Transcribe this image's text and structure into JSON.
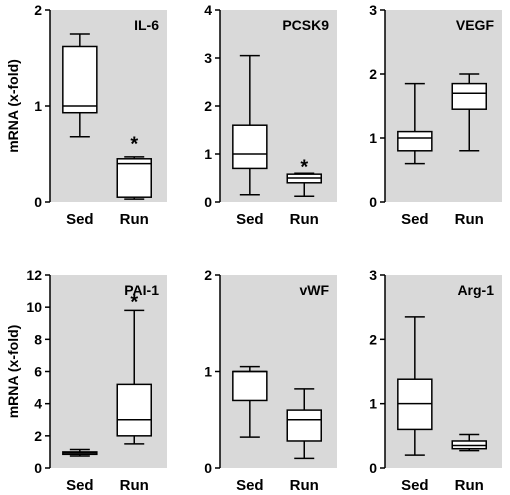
{
  "colors": {
    "panel_background": "#d9d9d9",
    "box_fill": "#ffffff",
    "line": "#000000"
  },
  "chart_data": [
    {
      "type": "box",
      "title": "IL-6",
      "ylabel": "mRNA (x-fold)",
      "ylim": [
        0,
        2
      ],
      "yticks": [
        "0",
        "1",
        "2"
      ],
      "categories": [
        "Sed",
        "Run"
      ],
      "boxes": [
        {
          "min": 0.68,
          "q1": 0.93,
          "median": 1.0,
          "q3": 1.62,
          "max": 1.75
        },
        {
          "min": 0.03,
          "q1": 0.05,
          "median": 0.4,
          "q3": 0.45,
          "max": 0.47
        }
      ],
      "annotations": [
        {
          "category": "Run",
          "text": "*",
          "value": 0.62
        }
      ]
    },
    {
      "type": "box",
      "title": "PCSK9",
      "ylabel": "",
      "ylim": [
        0,
        4
      ],
      "yticks": [
        "0",
        "1",
        "2",
        "3",
        "4"
      ],
      "categories": [
        "Sed",
        "Run"
      ],
      "boxes": [
        {
          "min": 0.15,
          "q1": 0.7,
          "median": 1.0,
          "q3": 1.6,
          "max": 3.05
        },
        {
          "min": 0.12,
          "q1": 0.4,
          "median": 0.5,
          "q3": 0.58,
          "max": 0.6
        }
      ],
      "annotations": [
        {
          "category": "Run",
          "text": "*",
          "value": 0.76
        }
      ]
    },
    {
      "type": "box",
      "title": "VEGF",
      "ylabel": "",
      "ylim": [
        0,
        3
      ],
      "yticks": [
        "0",
        "1",
        "2",
        "3"
      ],
      "categories": [
        "Sed",
        "Run"
      ],
      "boxes": [
        {
          "min": 0.6,
          "q1": 0.8,
          "median": 1.0,
          "q3": 1.1,
          "max": 1.85
        },
        {
          "min": 0.8,
          "q1": 1.45,
          "median": 1.7,
          "q3": 1.85,
          "max": 2.0
        }
      ],
      "annotations": []
    },
    {
      "type": "box",
      "title": "PAI-1",
      "ylabel": "mRNA (x-fold)",
      "ylim": [
        0,
        12
      ],
      "yticks": [
        "0",
        "2",
        "4",
        "6",
        "8",
        "10",
        "12"
      ],
      "categories": [
        "Sed",
        "Run"
      ],
      "boxes": [
        {
          "min": 0.75,
          "q1": 0.85,
          "median": 0.95,
          "q3": 1.0,
          "max": 1.15
        },
        {
          "min": 1.5,
          "q1": 2.0,
          "median": 3.0,
          "q3": 5.2,
          "max": 9.8
        }
      ],
      "annotations": [
        {
          "category": "Run",
          "text": "*",
          "value": 10.4
        }
      ]
    },
    {
      "type": "box",
      "title": "vWF",
      "ylabel": "",
      "ylim": [
        0,
        2
      ],
      "yticks": [
        "0",
        "1",
        "2"
      ],
      "categories": [
        "Sed",
        "Run"
      ],
      "boxes": [
        {
          "min": 0.32,
          "q1": 0.7,
          "median": 1.0,
          "q3": 1.0,
          "max": 1.05
        },
        {
          "min": 0.1,
          "q1": 0.28,
          "median": 0.5,
          "q3": 0.6,
          "max": 0.82
        }
      ],
      "annotations": []
    },
    {
      "type": "box",
      "title": "Arg-1",
      "ylabel": "",
      "ylim": [
        0,
        3
      ],
      "yticks": [
        "0",
        "1",
        "2",
        "3"
      ],
      "categories": [
        "Sed",
        "Run"
      ],
      "boxes": [
        {
          "min": 0.2,
          "q1": 0.6,
          "median": 1.0,
          "q3": 1.38,
          "max": 2.35
        },
        {
          "min": 0.27,
          "q1": 0.3,
          "median": 0.35,
          "q3": 0.42,
          "max": 0.52
        }
      ],
      "annotations": []
    }
  ]
}
